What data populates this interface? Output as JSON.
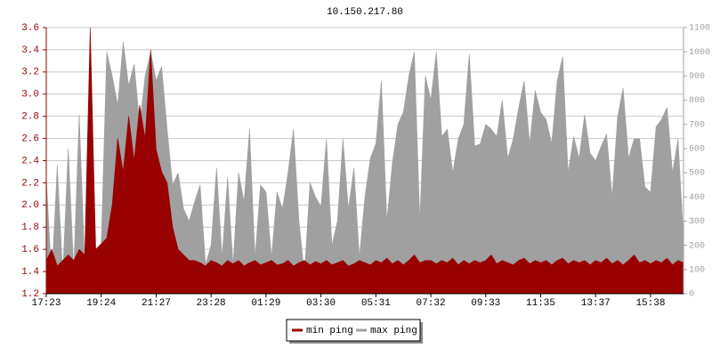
{
  "chart_data": {
    "type": "area",
    "title": "10.150.217.80",
    "categories": [
      "17:23",
      null,
      null,
      null,
      null,
      null,
      null,
      null,
      null,
      null,
      "19:24",
      null,
      null,
      null,
      null,
      null,
      null,
      null,
      null,
      null,
      "21:27",
      null,
      null,
      null,
      null,
      null,
      null,
      null,
      null,
      null,
      "23:28",
      null,
      null,
      null,
      null,
      null,
      null,
      null,
      null,
      null,
      "01:29",
      null,
      null,
      null,
      null,
      null,
      null,
      null,
      null,
      null,
      "03:30",
      null,
      null,
      null,
      null,
      null,
      null,
      null,
      null,
      null,
      "05:31",
      null,
      null,
      null,
      null,
      null,
      null,
      null,
      null,
      null,
      "07:32",
      null,
      null,
      null,
      null,
      null,
      null,
      null,
      null,
      null,
      "09:33",
      null,
      null,
      null,
      null,
      null,
      null,
      null,
      null,
      null,
      "11:35",
      null,
      null,
      null,
      null,
      null,
      null,
      null,
      null,
      null,
      "13:37",
      null,
      null,
      null,
      null,
      null,
      null,
      null,
      null,
      null,
      "15:38",
      null,
      null,
      null,
      null,
      null,
      null
    ],
    "series": [
      {
        "name": "max ping",
        "color": "#a0a0a0",
        "axis": "y2",
        "values": [
          480,
          60,
          530,
          80,
          600,
          100,
          740,
          120,
          900,
          150,
          200,
          1000,
          900,
          780,
          1040,
          860,
          950,
          700,
          900,
          1000,
          880,
          940,
          680,
          450,
          500,
          350,
          300,
          380,
          450,
          120,
          200,
          520,
          150,
          480,
          120,
          500,
          380,
          680,
          150,
          450,
          420,
          150,
          420,
          350,
          500,
          680,
          300,
          80,
          460,
          400,
          360,
          640,
          200,
          300,
          640,
          350,
          520,
          150,
          400,
          560,
          620,
          880,
          300,
          540,
          700,
          750,
          900,
          1000,
          300,
          900,
          800,
          1000,
          650,
          680,
          500,
          640,
          700,
          990,
          610,
          620,
          700,
          680,
          650,
          800,
          560,
          640,
          770,
          880,
          620,
          840,
          750,
          720,
          620,
          880,
          980,
          500,
          650,
          560,
          740,
          580,
          550,
          610,
          660,
          400,
          730,
          850,
          560,
          640,
          640,
          440,
          420,
          690,
          720,
          770,
          500,
          640,
          230
        ]
      },
      {
        "name": "min ping",
        "color": "#990000",
        "axis": "y",
        "values": [
          1.5,
          1.6,
          1.45,
          1.5,
          1.55,
          1.5,
          1.6,
          1.55,
          3.6,
          1.6,
          1.65,
          1.7,
          2.0,
          2.6,
          2.3,
          2.8,
          2.4,
          2.9,
          2.6,
          3.4,
          2.5,
          2.3,
          2.2,
          1.8,
          1.6,
          1.55,
          1.5,
          1.5,
          1.48,
          1.45,
          1.5,
          1.48,
          1.45,
          1.5,
          1.47,
          1.5,
          1.45,
          1.48,
          1.5,
          1.46,
          1.48,
          1.5,
          1.46,
          1.47,
          1.5,
          1.45,
          1.48,
          1.5,
          1.46,
          1.49,
          1.47,
          1.5,
          1.46,
          1.48,
          1.5,
          1.45,
          1.47,
          1.5,
          1.48,
          1.46,
          1.5,
          1.48,
          1.52,
          1.47,
          1.5,
          1.46,
          1.5,
          1.55,
          1.48,
          1.5,
          1.5,
          1.47,
          1.5,
          1.48,
          1.52,
          1.46,
          1.5,
          1.47,
          1.5,
          1.48,
          1.5,
          1.55,
          1.47,
          1.5,
          1.48,
          1.46,
          1.5,
          1.52,
          1.47,
          1.5,
          1.48,
          1.5,
          1.46,
          1.5,
          1.52,
          1.47,
          1.5,
          1.48,
          1.5,
          1.46,
          1.5,
          1.48,
          1.52,
          1.47,
          1.5,
          1.46,
          1.5,
          1.55,
          1.48,
          1.5,
          1.47,
          1.5,
          1.48,
          1.52,
          1.46,
          1.5,
          1.48
        ]
      }
    ],
    "ylim": [
      1.2,
      3.6
    ],
    "yticks": [
      1.2,
      1.4,
      1.6,
      1.8,
      {
        "value": 2,
        "label": "2.0"
      },
      2.2,
      2.4,
      2.6,
      2.8,
      {
        "value": 3,
        "label": "3.0"
      },
      3.2,
      3.4,
      3.6
    ],
    "y2lim": [
      0,
      1100
    ],
    "y2ticks": [
      0,
      100,
      200,
      300,
      400,
      500,
      600,
      700,
      800,
      900,
      1000,
      1100
    ],
    "grid": true,
    "legend": "bottom"
  }
}
